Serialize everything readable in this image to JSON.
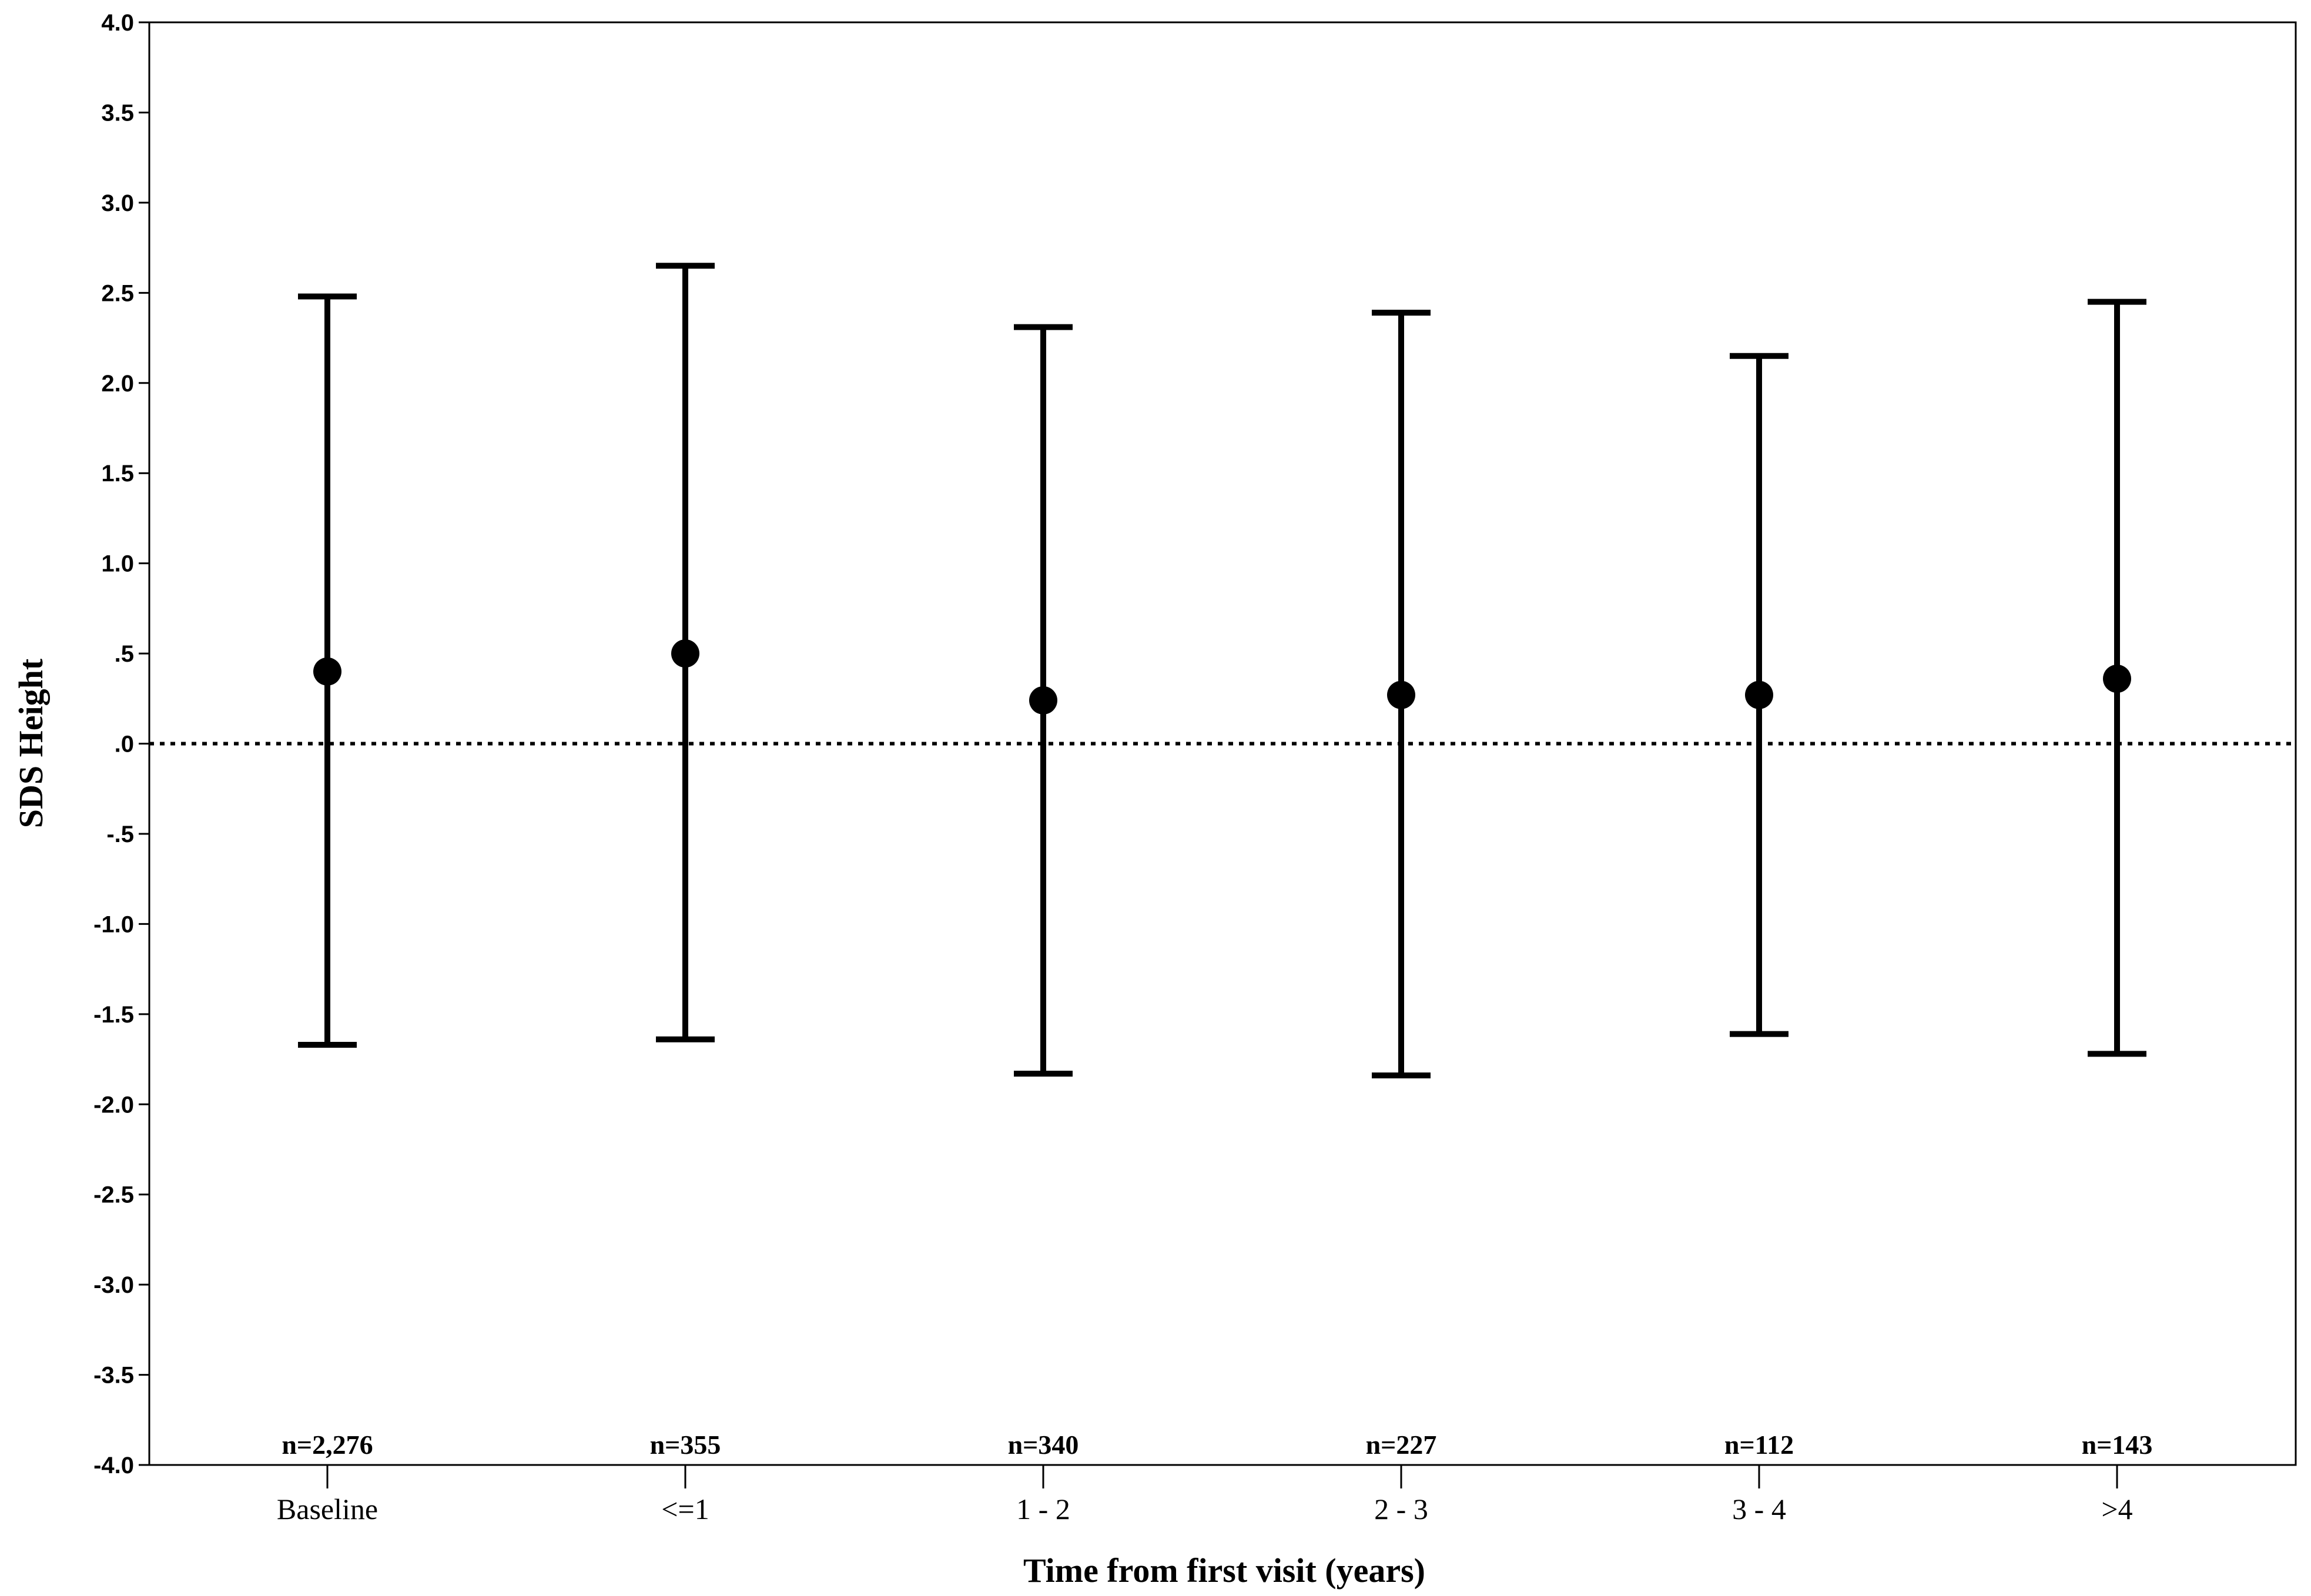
{
  "chart_data": {
    "type": "errorbar",
    "xlabel": "Time from first visit (years)",
    "ylabel": "SDS Height",
    "ylim": [
      -4.0,
      4.0
    ],
    "yticks": [
      {
        "value": 4.0,
        "label": "4.0"
      },
      {
        "value": 3.5,
        "label": "3.5"
      },
      {
        "value": 3.0,
        "label": "3.0"
      },
      {
        "value": 2.5,
        "label": "2.5"
      },
      {
        "value": 2.0,
        "label": "2.0"
      },
      {
        "value": 1.5,
        "label": "1.5"
      },
      {
        "value": 1.0,
        "label": "1.0"
      },
      {
        "value": 0.5,
        "label": ".5"
      },
      {
        "value": 0.0,
        "label": ".0"
      },
      {
        "value": -0.5,
        "label": "-.5"
      },
      {
        "value": -1.0,
        "label": "-1.0"
      },
      {
        "value": -1.5,
        "label": "-1.5"
      },
      {
        "value": -2.0,
        "label": "-2.0"
      },
      {
        "value": -2.5,
        "label": "-2.5"
      },
      {
        "value": -3.0,
        "label": "-3.0"
      },
      {
        "value": -3.5,
        "label": "-3.5"
      },
      {
        "value": -4.0,
        "label": "-4.0"
      }
    ],
    "reference_line": {
      "y": 0.0,
      "style": "dotted"
    },
    "grid": false,
    "points": [
      {
        "category": "Baseline",
        "n_label": "n=2,276",
        "mean": 0.4,
        "upper": 2.48,
        "lower": -1.67
      },
      {
        "category": "<=1",
        "n_label": "n=355",
        "mean": 0.5,
        "upper": 2.65,
        "lower": -1.64
      },
      {
        "category": "1 - 2",
        "n_label": "n=340",
        "mean": 0.24,
        "upper": 2.31,
        "lower": -1.83
      },
      {
        "category": "2 - 3",
        "n_label": "n=227",
        "mean": 0.27,
        "upper": 2.39,
        "lower": -1.84
      },
      {
        "category": "3 - 4",
        "n_label": "n=112",
        "mean": 0.27,
        "upper": 2.15,
        "lower": -1.61
      },
      {
        "category": ">4",
        "n_label": "n=143",
        "mean": 0.36,
        "upper": 2.45,
        "lower": -1.72
      }
    ]
  }
}
